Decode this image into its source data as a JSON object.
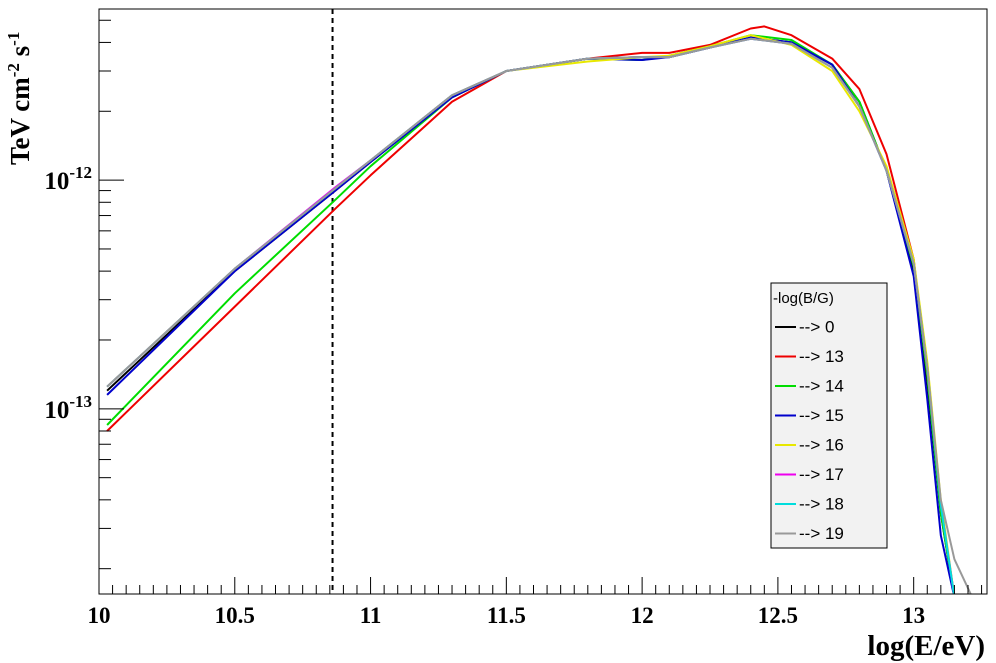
{
  "chart_data": {
    "type": "line",
    "title": "",
    "xlabel": "log(E/eV)",
    "ylabel": "TeV cm⁻² s⁻¹",
    "ylabel_parts": [
      "TeV cm",
      "-2",
      " s",
      "-1"
    ],
    "xlim": [
      10.0,
      13.27
    ],
    "ylim": [
      1.55e-14,
      5.6e-12
    ],
    "yscale": "log",
    "grid": false,
    "legend_position": "bottom-right",
    "legend_title": "-log(B/G)",
    "x_ticks": [
      {
        "value": 10.0,
        "label": "10"
      },
      {
        "value": 10.5,
        "label": "10.5"
      },
      {
        "value": 11.0,
        "label": "11"
      },
      {
        "value": 11.5,
        "label": "11.5"
      },
      {
        "value": 12.0,
        "label": "12"
      },
      {
        "value": 12.5,
        "label": "12.5"
      },
      {
        "value": 13.0,
        "label": "13"
      }
    ],
    "y_ticks": [
      {
        "value": 1e-13,
        "base": "10",
        "exp": "-13"
      },
      {
        "value": 1e-12,
        "base": "10",
        "exp": "-12"
      }
    ],
    "vline": {
      "x": 10.86,
      "style": "dashed"
    },
    "series": [
      {
        "name": "--> 0",
        "color": "#000000",
        "x": [
          10.03,
          10.5,
          10.87,
          11.0,
          11.3,
          11.5,
          11.8,
          12.0,
          12.1,
          12.25,
          12.4,
          12.55,
          12.7,
          12.8,
          12.9,
          13.0,
          13.05,
          13.1,
          13.15
        ],
        "y": [
          1.2e-13,
          4e-13,
          9e-13,
          1.2e-12,
          2.3e-12,
          3e-12,
          3.4e-12,
          3.45e-12,
          3.45e-12,
          3.8e-12,
          4.2e-12,
          4e-12,
          3.2e-12,
          2.2e-12,
          1.1e-12,
          4e-13,
          1.3e-13,
          3.5e-14,
          1.5e-14
        ]
      },
      {
        "name": "--> 13",
        "color": "#ee0000",
        "x": [
          10.03,
          10.5,
          10.87,
          11.0,
          11.3,
          11.5,
          11.8,
          12.0,
          12.1,
          12.25,
          12.4,
          12.45,
          12.55,
          12.7,
          12.8,
          12.9,
          13.0,
          13.05,
          13.1,
          13.15
        ],
        "y": [
          8e-14,
          2.8e-13,
          7.5e-13,
          1.05e-12,
          2.2e-12,
          3e-12,
          3.4e-12,
          3.6e-12,
          3.6e-12,
          3.9e-12,
          4.6e-12,
          4.7e-12,
          4.3e-12,
          3.4e-12,
          2.5e-12,
          1.3e-12,
          4.5e-13,
          1.4e-13,
          3.8e-14,
          1.5e-14
        ]
      },
      {
        "name": "--> 14",
        "color": "#00dd00",
        "x": [
          10.03,
          10.5,
          10.87,
          11.0,
          11.3,
          11.5,
          11.8,
          12.0,
          12.1,
          12.25,
          12.4,
          12.55,
          12.7,
          12.8,
          12.9,
          13.0,
          13.05,
          13.1,
          13.15
        ],
        "y": [
          8.5e-14,
          3.2e-13,
          8.2e-13,
          1.15e-12,
          2.3e-12,
          3e-12,
          3.4e-12,
          3.35e-12,
          3.5e-12,
          3.85e-12,
          4.3e-12,
          4.1e-12,
          3.2e-12,
          2.2e-12,
          1.1e-12,
          4.2e-13,
          1.4e-13,
          3.5e-14,
          1.5e-14
        ]
      },
      {
        "name": "--> 15",
        "color": "#0000cc",
        "x": [
          10.03,
          10.5,
          10.87,
          11.0,
          11.3,
          11.5,
          11.8,
          12.0,
          12.1,
          12.25,
          12.4,
          12.55,
          12.7,
          12.8,
          12.9,
          13.0,
          13.05,
          13.1,
          13.15
        ],
        "y": [
          1.15e-13,
          4e-13,
          9e-13,
          1.2e-12,
          2.3e-12,
          3e-12,
          3.4e-12,
          3.35e-12,
          3.45e-12,
          3.8e-12,
          4.2e-12,
          4e-12,
          3.2e-12,
          2.1e-12,
          1.1e-12,
          3.8e-13,
          1.1e-13,
          2.8e-14,
          1.5e-14
        ]
      },
      {
        "name": "--> 16",
        "color": "#e8e800",
        "x": [
          10.03,
          10.5,
          10.87,
          11.0,
          11.3,
          11.5,
          11.8,
          12.0,
          12.1,
          12.25,
          12.4,
          12.55,
          12.7,
          12.8,
          12.9,
          13.0,
          13.05,
          13.1,
          13.15
        ],
        "y": [
          1.25e-13,
          4.1e-13,
          9.2e-13,
          1.22e-12,
          2.35e-12,
          3e-12,
          3.3e-12,
          3.45e-12,
          3.5e-12,
          3.85e-12,
          4.3e-12,
          3.9e-12,
          3e-12,
          2e-12,
          1.15e-12,
          4.5e-13,
          1.6e-13,
          4e-14,
          1.5e-14
        ]
      },
      {
        "name": "--> 17",
        "color": "#ee00ee",
        "x": [
          10.03,
          10.5,
          10.87,
          11.0,
          11.3,
          11.5,
          11.8,
          12.0,
          12.1,
          12.25,
          12.4,
          12.55,
          12.7,
          12.8,
          12.9,
          13.0,
          13.05,
          13.1,
          13.15
        ],
        "y": [
          1.25e-13,
          4.1e-13,
          9.3e-13,
          1.22e-12,
          2.35e-12,
          3e-12,
          3.4e-12,
          3.45e-12,
          3.45e-12,
          3.8e-12,
          4.15e-12,
          3.95e-12,
          3.1e-12,
          2.1e-12,
          1.1e-12,
          4.3e-13,
          1.5e-13,
          3.8e-14,
          1.5e-14
        ]
      },
      {
        "name": "--> 18",
        "color": "#00dddd",
        "x": [
          10.03,
          10.5,
          10.87,
          11.0,
          11.3,
          11.5,
          11.8,
          12.0,
          12.1,
          12.25,
          12.4,
          12.55,
          12.7,
          12.8,
          12.9,
          13.0,
          13.05,
          13.1,
          13.15
        ],
        "y": [
          1.25e-13,
          4.1e-13,
          9.2e-13,
          1.22e-12,
          2.35e-12,
          3e-12,
          3.4e-12,
          3.45e-12,
          3.45e-12,
          3.8e-12,
          4.15e-12,
          3.95e-12,
          3.1e-12,
          2.1e-12,
          1.1e-12,
          4.3e-13,
          1.5e-13,
          3.8e-14,
          1.5e-14
        ]
      },
      {
        "name": "--> 19",
        "color": "#999999",
        "x": [
          10.03,
          10.5,
          10.87,
          11.0,
          11.3,
          11.5,
          11.8,
          12.0,
          12.1,
          12.25,
          12.4,
          12.55,
          12.7,
          12.8,
          12.9,
          13.0,
          13.05,
          13.1,
          13.15,
          13.21
        ],
        "y": [
          1.25e-13,
          4.1e-13,
          9.2e-13,
          1.22e-12,
          2.35e-12,
          3e-12,
          3.4e-12,
          3.45e-12,
          3.45e-12,
          3.8e-12,
          4.15e-12,
          3.95e-12,
          3.1e-12,
          2.1e-12,
          1.1e-12,
          4.3e-13,
          1.5e-13,
          4e-14,
          2.2e-14,
          1.55e-14
        ]
      }
    ]
  }
}
